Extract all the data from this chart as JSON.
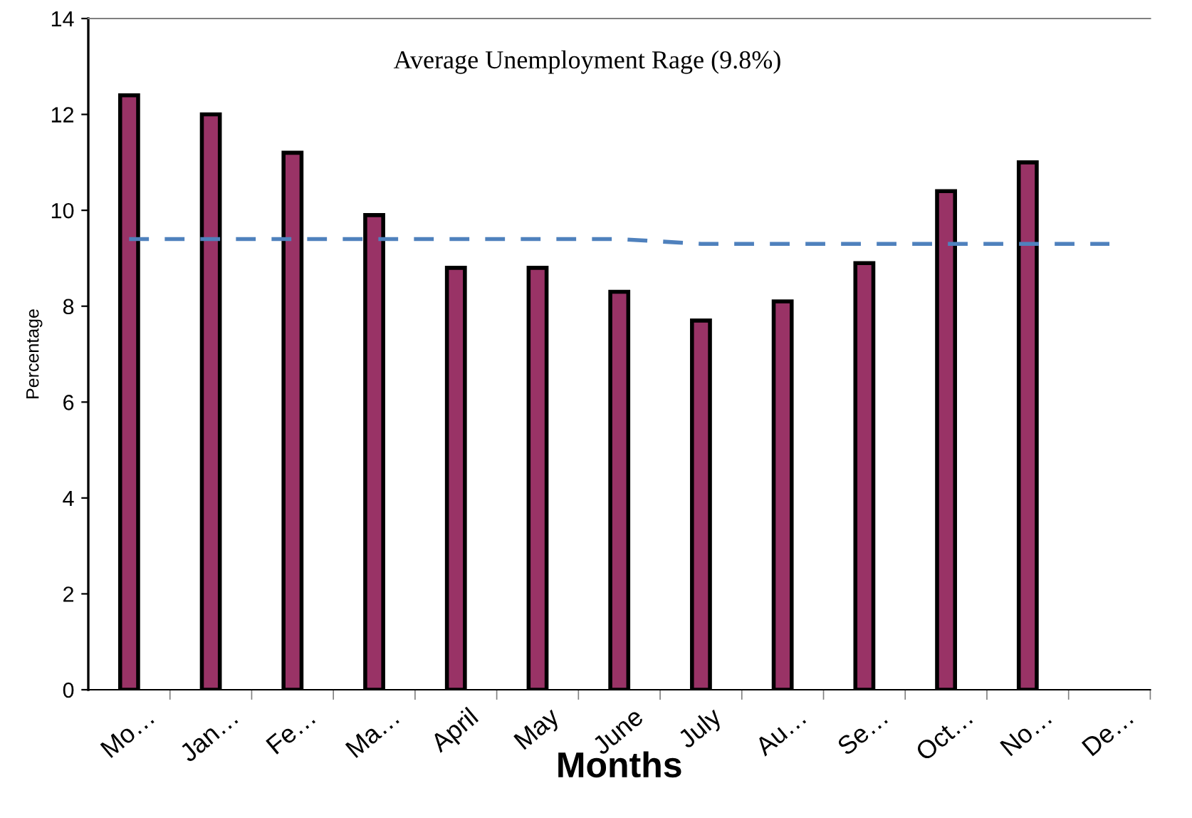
{
  "chart_data": {
    "type": "bar",
    "xlabel": "Months",
    "ylabel": "Percentage",
    "categories": [
      "Mo…",
      "Jan…",
      "Fe…",
      "Ma…",
      "April",
      "May",
      "June",
      "July",
      "Au…",
      "Se…",
      "Oct…",
      "No…",
      "De…"
    ],
    "series": [
      {
        "color": "#993366",
        "values": [
          12.4,
          12.0,
          11.2,
          9.9,
          8.8,
          8.8,
          8.3,
          7.7,
          8.1,
          8.9,
          10.4,
          11.0,
          null
        ]
      },
      {
        "type": "line",
        "line_style": "dashed",
        "color": "#4f81bd",
        "values": [
          9.4,
          9.4,
          9.4,
          9.4,
          9.4,
          9.4,
          9.4,
          9.3,
          9.3,
          9.3,
          9.3,
          9.3,
          9.3
        ]
      }
    ],
    "ylim": [
      0,
      14
    ],
    "yticks": [
      0,
      2,
      4,
      6,
      8,
      10,
      12,
      14
    ],
    "grid": false,
    "annotations": [
      "Average Unemployment Rage (9.8%)"
    ]
  }
}
